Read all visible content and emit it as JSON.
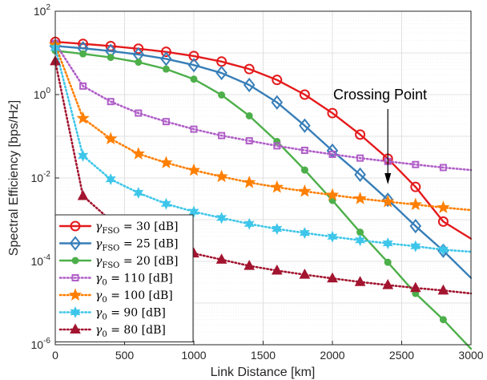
{
  "chart_data": {
    "type": "line",
    "xlabel": "Link Distance [km]",
    "ylabel": "Spectral Efficiency [bps/Hz]",
    "xlim": [
      0,
      3000
    ],
    "ylim": [
      1e-06,
      100
    ],
    "yscale": "log",
    "grid": true,
    "legend_position": "bottom-left",
    "x_ticks": [
      "0",
      "500",
      "1000",
      "1500",
      "2000",
      "2500",
      "3000"
    ],
    "y_ticks": [
      {
        "base": "10",
        "exp": "-6"
      },
      {
        "base": "10",
        "exp": "-4"
      },
      {
        "base": "10",
        "exp": "-2"
      },
      {
        "base": "10",
        "exp": "0"
      },
      {
        "base": "10",
        "exp": "2"
      }
    ],
    "annotation": {
      "text": "Crossing Point",
      "x": 2400,
      "y": 0.003
    },
    "x": [
      0,
      200,
      400,
      600,
      800,
      1000,
      1200,
      1400,
      1600,
      1800,
      2000,
      2200,
      2400,
      2600,
      2800,
      3000
    ],
    "series": [
      {
        "sym": "γ",
        "sub": "FSO",
        "rhs": " = 30 [dB]",
        "color": "#e41a1c",
        "marker": "circle",
        "values": [
          18.4,
          16.5,
          14.6,
          12.6,
          10.6,
          8.4,
          6.2,
          4.1,
          2.25,
          1.0,
          0.36,
          0.11,
          0.029,
          0.0061,
          0.0009,
          0.00035
        ]
      },
      {
        "sym": "γ",
        "sub": "FSO",
        "rhs": " = 25 [dB]",
        "color": "#377eb8",
        "marker": "diamond",
        "values": [
          14.7,
          12.9,
          11.1,
          9.2,
          7.2,
          5.1,
          3.3,
          1.7,
          0.65,
          0.18,
          0.045,
          0.012,
          0.003,
          0.0007,
          0.00018,
          4e-05
        ]
      },
      {
        "sym": "γ",
        "sub": "FSO",
        "rhs": " = 20 [dB]",
        "color": "#4daf4a",
        "marker": "dot",
        "values": [
          11.3,
          9.5,
          7.8,
          6.0,
          4.1,
          2.35,
          0.98,
          0.31,
          0.075,
          0.0155,
          0.0029,
          0.0005,
          9.5e-05,
          1.7e-05,
          4e-06,
          8e-07
        ]
      },
      {
        "sym": "γ",
        "sub": "0",
        "rhs": " = 110 [dB]",
        "color": "#b05fc8",
        "marker": "square",
        "values": [
          17,
          1.6,
          0.68,
          0.36,
          0.225,
          0.148,
          0.104,
          0.078,
          0.059,
          0.046,
          0.037,
          0.03,
          0.025,
          0.021,
          0.0178,
          0.0155
        ]
      },
      {
        "sym": "γ",
        "sub": "0",
        "rhs": " = 100 [dB]",
        "color": "#ff7f00",
        "marker": "star",
        "values": [
          15.5,
          0.27,
          0.087,
          0.038,
          0.0232,
          0.0153,
          0.0108,
          0.0078,
          0.006,
          0.0048,
          0.0039,
          0.0032,
          0.0027,
          0.0023,
          0.00195,
          0.0017
        ]
      },
      {
        "sym": "γ",
        "sub": "0",
        "rhs": " = 90 [dB]",
        "color": "#3ec6ea",
        "marker": "hexstar",
        "values": [
          13.2,
          0.034,
          0.0093,
          0.0044,
          0.0024,
          0.00155,
          0.0011,
          0.00079,
          0.0006,
          0.00048,
          0.00039,
          0.00032,
          0.00027,
          0.00023,
          0.00019,
          0.00017
        ]
      },
      {
        "sym": "γ",
        "sub": "0",
        "rhs": " = 80 [dB]",
        "color": "#a2142f",
        "marker": "triangle",
        "values": [
          6.3,
          0.0037,
          0.00096,
          0.00044,
          0.00024,
          0.000155,
          0.00011,
          7.8e-05,
          6e-05,
          4.8e-05,
          3.9e-05,
          3.2e-05,
          2.7e-05,
          2.3e-05,
          2e-05,
          1.7e-05
        ]
      }
    ]
  }
}
